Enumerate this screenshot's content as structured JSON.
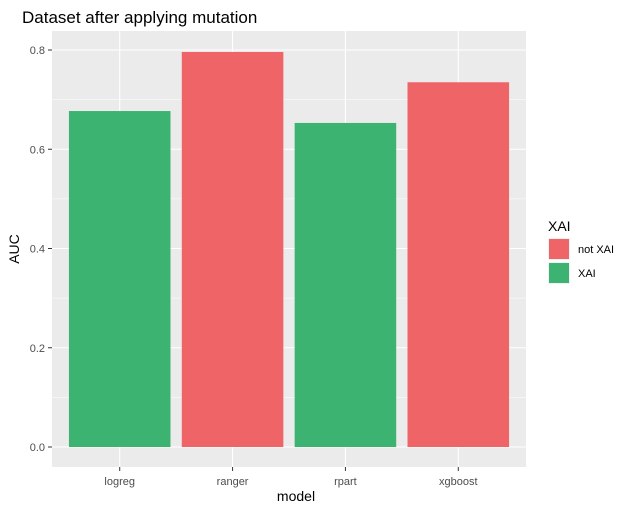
{
  "chart_data": {
    "type": "bar",
    "title": "Dataset after applying mutation",
    "xlabel": "model",
    "ylabel": "AUC",
    "categories": [
      "logreg",
      "ranger",
      "rpart",
      "xgboost"
    ],
    "values": [
      0.677,
      0.796,
      0.653,
      0.735
    ],
    "groups": [
      "XAI",
      "not XAI",
      "XAI",
      "not XAI"
    ],
    "ylim": [
      0,
      0.82
    ],
    "yticks": [
      0.0,
      0.2,
      0.4,
      0.6,
      0.8
    ],
    "ytick_labels": [
      "0.0",
      "0.2",
      "0.4",
      "0.6",
      "0.8"
    ],
    "grid": true,
    "legend": {
      "title": "XAI",
      "position": "right",
      "entries": [
        {
          "label": "not XAI",
          "color": "#ef6467"
        },
        {
          "label": "XAI",
          "color": "#3cb371"
        }
      ]
    },
    "colors": {
      "panel_background": "#ebebeb",
      "grid": "#ffffff"
    }
  }
}
